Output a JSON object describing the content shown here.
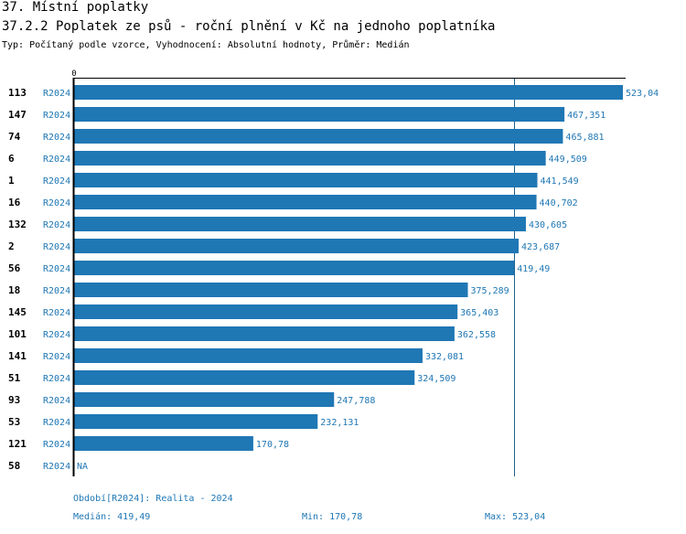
{
  "header": {
    "section": "37. Místní poplatky",
    "title": "37.2.2 Poplatek ze psů - roční plnění v Kč na jednoho poplatníka",
    "subtitle": "Typ: Počítaný podle vzorce, Vyhodnocení: Absolutní hodnoty, Průměr: Medián"
  },
  "colors": {
    "bar": "#1f77b4",
    "label": "#1f77b4",
    "axis": "#000000",
    "median_line": "#1f5f8b"
  },
  "chart_data": {
    "type": "bar",
    "orientation": "horizontal",
    "title": "37.2.2 Poplatek ze psů - roční plnění v Kč na jednoho poplatníka",
    "xlim": [
      0,
      523.04
    ],
    "x_tick_label": "0",
    "series_label": "R2024",
    "median": 419.49,
    "categories": [
      "113",
      "147",
      "74",
      "6",
      "1",
      "16",
      "132",
      "2",
      "56",
      "18",
      "145",
      "101",
      "141",
      "51",
      "93",
      "53",
      "121",
      "58"
    ],
    "values": [
      523.04,
      467.351,
      465.881,
      449.509,
      441.549,
      440.702,
      430.605,
      423.687,
      419.49,
      375.289,
      365.403,
      362.558,
      332.081,
      324.509,
      247.788,
      232.131,
      170.78,
      null
    ],
    "value_labels": [
      "523,04",
      "467,351",
      "465,881",
      "449,509",
      "441,549",
      "440,702",
      "430,605",
      "423,687",
      "419,49",
      "375,289",
      "365,403",
      "362,558",
      "332,081",
      "324,509",
      "247,788",
      "232,131",
      "170,78",
      "NA"
    ]
  },
  "footer": {
    "period": "Období[R2024]: Realita - 2024",
    "median": "Medián: 419,49",
    "min": "Min: 170,78",
    "max": "Max: 523,04"
  }
}
